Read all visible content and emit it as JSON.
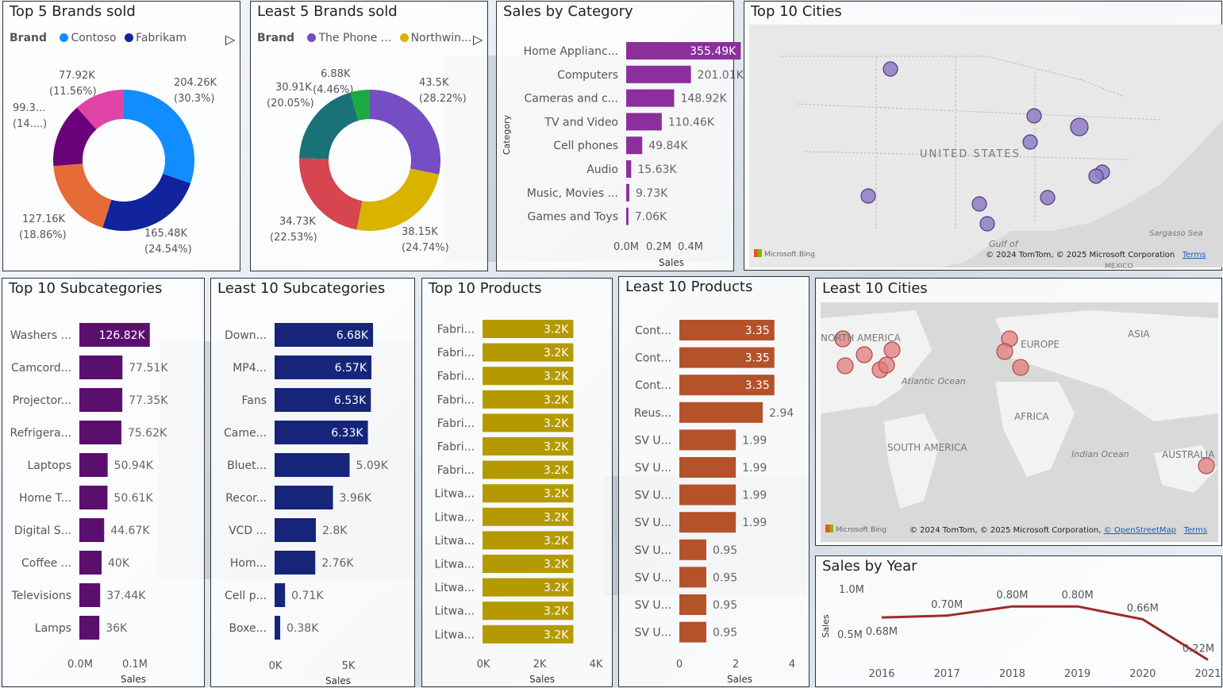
{
  "colors": {
    "contoso": "#118DFF",
    "fabrikam": "#12239E",
    "c3": "#E66C37",
    "c4": "#6B007B",
    "c5": "#E044A7",
    "phone": "#744EC2",
    "northwind": "#D9B300",
    "c8": "#D64550",
    "c9": "#197278",
    "c10": "#1AAB40",
    "category": "#8C2F9C",
    "subTop": "#5A0F6E",
    "subLeast": "#16257A",
    "prodTop": "#B49A00",
    "prodLeast": "#B4522A",
    "cityTop": "#8E7CC3",
    "cityLeast": "#E07B7B",
    "yearLine": "#9B2C2C"
  },
  "panels": {
    "top5": {
      "title": "Top 5 Brands sold",
      "legend_label": "Brand",
      "legend": [
        "Contoso",
        "Fabrikam"
      ],
      "labels": [
        [
          "204.26K",
          "(30.3%)"
        ],
        [
          "165.48K",
          "(24.54%)"
        ],
        [
          "127.16K",
          "(18.86%)"
        ],
        [
          "99.3...",
          "(14....)"
        ],
        [
          "77.92K",
          "(11.56%)"
        ]
      ]
    },
    "least5": {
      "title": "Least 5 Brands sold",
      "legend_label": "Brand",
      "legend": [
        "The Phone ...",
        "Northwin..."
      ],
      "labels": [
        [
          "43.5K",
          "(28.22%)"
        ],
        [
          "38.15K",
          "(24.74%)"
        ],
        [
          "34.73K",
          "(22.53%)"
        ],
        [
          "30.91K",
          "(20.05%)"
        ],
        [
          "6.88K",
          "(4.46%)"
        ]
      ]
    },
    "category": {
      "title": "Sales by Category",
      "ylabel": "Category",
      "xlabel": "Sales",
      "ticks": [
        "0.0M",
        "0.2M",
        "0.4M"
      ]
    },
    "topCities": {
      "title": "Top 10 Cities",
      "labels": [
        "UNITED STATES",
        "Gulf of",
        "MEXICO",
        "Sargasso Sea"
      ],
      "credit": "© 2024 TomTom, © 2025 Microsoft Corporation",
      "terms": "Terms",
      "bing": "Microsoft Bing"
    },
    "topSub": {
      "title": "Top 10 Subcategories",
      "xlabel": "Sales",
      "ticks": [
        "0.0M",
        "0.1M"
      ]
    },
    "leastSub": {
      "title": "Least 10 Subcategories",
      "xlabel": "Sales",
      "ticks": [
        "0K",
        "5K"
      ]
    },
    "topProd": {
      "title": "Top 10 Products",
      "xlabel": "Sales",
      "ticks": [
        "0K",
        "2K",
        "4K"
      ]
    },
    "leastProd": {
      "title": "Least 10 Products",
      "xlabel": "Sales",
      "ticks": [
        "0",
        "2",
        "4"
      ]
    },
    "leastCities": {
      "title": "Least 10 Cities",
      "labels": [
        "NORTH AMERICA",
        "EUROPE",
        "ASIA",
        "Atlantic Ocean",
        "AFRICA",
        "SOUTH AMERICA",
        "Indian Ocean",
        "AUSTRALIA"
      ],
      "credit": "© 2024 TomTom, © 2025 Microsoft Corporation,",
      "osm": "© OpenStreetMap",
      "terms": "Terms",
      "bing": "Microsoft Bing"
    },
    "year": {
      "title": "Sales by Year",
      "ylabel": "Sales",
      "ticks": [
        "1.0M",
        "0.5M"
      ]
    }
  },
  "chart_data": [
    {
      "type": "pie",
      "title": "Top 5 Brands sold",
      "donut": true,
      "legend_title": "Brand",
      "categories": [
        "Contoso",
        "Fabrikam",
        "",
        "",
        ""
      ],
      "values": [
        204.26,
        165.48,
        127.16,
        99.3,
        77.92
      ],
      "unit": "K",
      "percent": [
        30.3,
        24.54,
        18.86,
        14.7,
        11.56
      ]
    },
    {
      "type": "pie",
      "title": "Least 5 Brands sold",
      "donut": true,
      "legend_title": "Brand",
      "categories": [
        "The Phone ...",
        "Northwin...",
        "",
        "",
        ""
      ],
      "values": [
        43.5,
        38.15,
        34.73,
        30.91,
        6.88
      ],
      "unit": "K",
      "percent": [
        28.22,
        24.74,
        22.53,
        20.05,
        4.46
      ]
    },
    {
      "type": "bar",
      "orientation": "horizontal",
      "title": "Sales by Category",
      "categories": [
        "Home Applianc...",
        "Computers",
        "Cameras and c...",
        "TV and Video",
        "Cell phones",
        "Audio",
        "Music, Movies ...",
        "Games and Toys"
      ],
      "values": [
        355.49,
        201.01,
        148.92,
        110.46,
        49.84,
        15.63,
        9.73,
        7.06
      ],
      "labels": [
        "355.49K",
        "201.01K",
        "148.92K",
        "110.46K",
        "49.84K",
        "15.63K",
        "9.73K",
        "7.06K"
      ],
      "unit": "K",
      "xlim": [
        0,
        500
      ],
      "xlabel": "Sales",
      "ylabel": "Category"
    },
    {
      "type": "bar",
      "orientation": "horizontal",
      "title": "Top 10 Subcategories",
      "categories": [
        "Washers ...",
        "Camcord...",
        "Projector...",
        "Refrigera...",
        "Laptops",
        "Home T...",
        "Digital S...",
        "Coffee ...",
        "Televisions",
        "Lamps"
      ],
      "values": [
        126.82,
        77.51,
        77.35,
        75.62,
        50.94,
        50.61,
        44.67,
        40,
        37.44,
        36
      ],
      "labels": [
        "126.82K",
        "77.51K",
        "77.35K",
        "75.62K",
        "50.94K",
        "50.61K",
        "44.67K",
        "40K",
        "37.44K",
        "36K"
      ],
      "unit": "K",
      "xlim": [
        0,
        150
      ],
      "xlabel": "Sales"
    },
    {
      "type": "bar",
      "orientation": "horizontal",
      "title": "Least 10 Subcategories",
      "categories": [
        "Down...",
        "MP4...",
        "Fans",
        "Came...",
        "Bluet...",
        "Recor...",
        "VCD ...",
        "Hom...",
        "Cell p...",
        "Boxe..."
      ],
      "values": [
        6.68,
        6.57,
        6.53,
        6.33,
        5.09,
        3.96,
        2.8,
        2.76,
        0.71,
        0.38
      ],
      "labels": [
        "6.68K",
        "6.57K",
        "6.53K",
        "6.33K",
        "5.09K",
        "3.96K",
        "2.8K",
        "2.76K",
        "0.71K",
        "0.38K"
      ],
      "unit": "K",
      "xlim": [
        0,
        7
      ],
      "xlabel": "Sales"
    },
    {
      "type": "bar",
      "orientation": "horizontal",
      "title": "Top 10 Products",
      "categories": [
        "Fabri...",
        "Fabri...",
        "Fabri...",
        "Fabri...",
        "Fabri...",
        "Fabri...",
        "Fabri...",
        "Litwa...",
        "Litwa...",
        "Litwa...",
        "Litwa...",
        "Litwa...",
        "Litwa...",
        "Litwa..."
      ],
      "values": [
        3.2,
        3.2,
        3.2,
        3.2,
        3.2,
        3.2,
        3.2,
        3.2,
        3.2,
        3.2,
        3.2,
        3.2,
        3.2,
        3.2
      ],
      "labels": [
        "3.2K",
        "3.2K",
        "3.2K",
        "3.2K",
        "3.2K",
        "3.2K",
        "3.2K",
        "3.2K",
        "3.2K",
        "3.2K",
        "3.2K",
        "3.2K",
        "3.2K",
        "3.2K"
      ],
      "unit": "K",
      "xlim": [
        0,
        4
      ],
      "xlabel": "Sales"
    },
    {
      "type": "bar",
      "orientation": "horizontal",
      "title": "Least 10 Products",
      "categories": [
        "Cont...",
        "Cont...",
        "Cont...",
        "Reus...",
        "SV U...",
        "SV U...",
        "SV U...",
        "SV U...",
        "SV U...",
        "SV U...",
        "SV U...",
        "SV U..."
      ],
      "values": [
        3.35,
        3.35,
        3.35,
        2.94,
        1.99,
        1.99,
        1.99,
        1.99,
        0.95,
        0.95,
        0.95,
        0.95
      ],
      "labels": [
        "3.35",
        "3.35",
        "3.35",
        "2.94",
        "1.99",
        "1.99",
        "1.99",
        "1.99",
        "0.95",
        "0.95",
        "0.95",
        "0.95"
      ],
      "xlim": [
        0,
        4
      ],
      "xlabel": "Sales"
    },
    {
      "type": "line",
      "title": "Sales by Year",
      "x": [
        "2016",
        "2017",
        "2018",
        "2019",
        "2020",
        "2021"
      ],
      "values": [
        0.68,
        0.7,
        0.8,
        0.8,
        0.66,
        0.22
      ],
      "labels": [
        "0.68M",
        "0.70M",
        "0.80M",
        "0.80M",
        "0.66M",
        "0.22M"
      ],
      "unit": "M",
      "ylim": [
        0.2,
        1.0
      ],
      "ylabel": "Sales"
    }
  ]
}
